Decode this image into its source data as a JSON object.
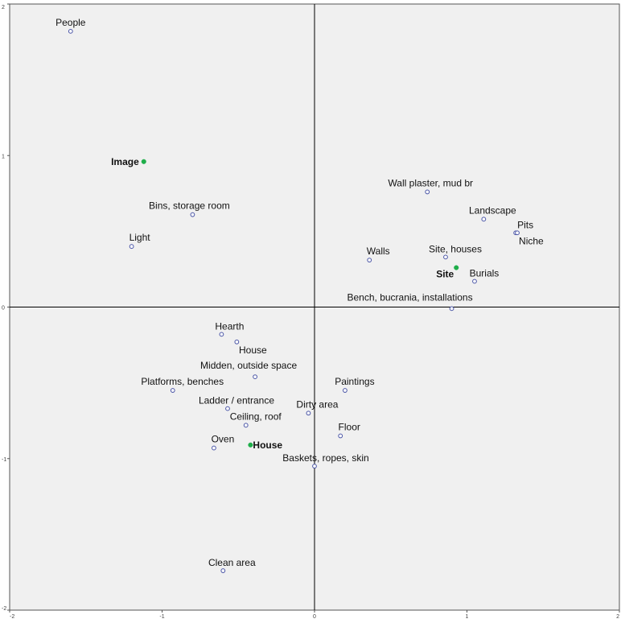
{
  "chart_data": {
    "type": "scatter",
    "xlim": [
      -2,
      2
    ],
    "ylim": [
      -2,
      2
    ],
    "x_ticks": [
      "-2",
      "-1",
      "0",
      "1",
      "2"
    ],
    "y_ticks": [
      "2",
      "1",
      "0",
      "-1",
      "-2"
    ],
    "grid": false,
    "reference_lines": [
      0,
      0
    ],
    "colors": {
      "plot_background": "#f0f0f0",
      "axis_line": "#000000",
      "row_point_stroke": "#4a55a6",
      "column_point_fill": "#1fae4a"
    },
    "column_points": [
      {
        "label": "Image",
        "x": -1.12,
        "y": 0.96
      },
      {
        "label": "Site",
        "x": 0.93,
        "y": 0.26
      },
      {
        "label": "House",
        "x": -0.42,
        "y": -0.91
      }
    ],
    "row_points": [
      {
        "label": "People",
        "x": -1.6,
        "y": 1.82
      },
      {
        "label": "Bins, storage room",
        "x": -0.8,
        "y": 0.61
      },
      {
        "label": "Light",
        "x": -1.2,
        "y": 0.4
      },
      {
        "label": "Wall plaster, mud br",
        "x": 0.74,
        "y": 0.76
      },
      {
        "label": "Landscape",
        "x": 1.11,
        "y": 0.58
      },
      {
        "label": "Pits",
        "x": 1.32,
        "y": 0.49
      },
      {
        "label": "Niche",
        "x": 1.33,
        "y": 0.49
      },
      {
        "label": "Site, houses",
        "x": 0.86,
        "y": 0.33
      },
      {
        "label": "Walls",
        "x": 0.36,
        "y": 0.31
      },
      {
        "label": "Burials",
        "x": 1.05,
        "y": 0.17
      },
      {
        "label": "Bench, bucrania, installations",
        "x": 0.9,
        "y": -0.01
      },
      {
        "label": "Hearth",
        "x": -0.61,
        "y": -0.18
      },
      {
        "label": "House",
        "x": -0.51,
        "y": -0.23
      },
      {
        "label": "Midden, outside space",
        "x": -0.39,
        "y": -0.46
      },
      {
        "label": "Platforms, benches",
        "x": -0.93,
        "y": -0.55
      },
      {
        "label": "Paintings",
        "x": 0.2,
        "y": -0.55
      },
      {
        "label": "Ladder / entrance",
        "x": -0.57,
        "y": -0.67
      },
      {
        "label": "Dirty area",
        "x": -0.04,
        "y": -0.7
      },
      {
        "label": "Ceiling, roof",
        "x": -0.45,
        "y": -0.78
      },
      {
        "label": "Floor",
        "x": 0.17,
        "y": -0.85
      },
      {
        "label": "Oven",
        "x": -0.66,
        "y": -0.93
      },
      {
        "label": "Baskets, ropes, skin",
        "x": 0.0,
        "y": -1.05
      },
      {
        "label": "Clean area",
        "x": -0.6,
        "y": -1.74
      }
    ]
  }
}
